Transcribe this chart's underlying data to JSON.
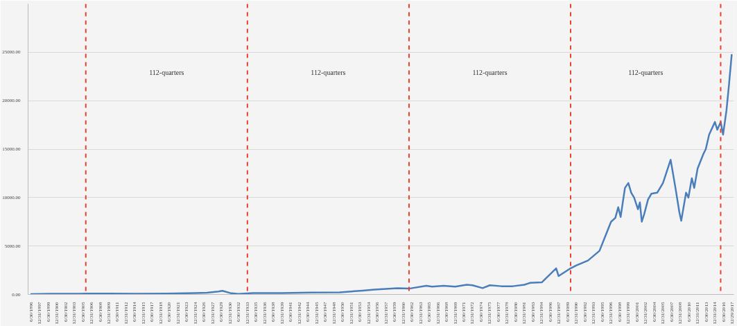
{
  "chart_data": {
    "type": "line",
    "xlim": [
      "1896-01-01",
      "2018-04-15"
    ],
    "ylim": [
      0,
      30000
    ],
    "yticks": [
      {
        "value": 0,
        "label": "0.00"
      },
      {
        "value": 5000,
        "label": "5000.00"
      },
      {
        "value": 10000,
        "label": "10000.00"
      },
      {
        "value": 15000,
        "label": "15000.00"
      },
      {
        "value": 20000,
        "label": "20000.00"
      },
      {
        "value": 25000,
        "label": "25000.00"
      }
    ],
    "xticks": [
      {
        "value": "1896-06-30",
        "label": "6/30/1896"
      },
      {
        "value": "1897-12-31",
        "label": "12/31/1897"
      },
      {
        "value": "1899-06-30",
        "label": "6/30/1899"
      },
      {
        "value": "1900-12-31",
        "label": "12/31/1900"
      },
      {
        "value": "1902-06-30",
        "label": "6/30/1902"
      },
      {
        "value": "1903-12-31",
        "label": "12/31/1903"
      },
      {
        "value": "1905-06-30",
        "label": "6/30/1905"
      },
      {
        "value": "1906-12-31",
        "label": "12/31/1906"
      },
      {
        "value": "1908-06-30",
        "label": "6/30/1908"
      },
      {
        "value": "1909-12-31",
        "label": "12/31/1909"
      },
      {
        "value": "1911-06-30",
        "label": "6/30/1911"
      },
      {
        "value": "1912-12-31",
        "label": "12/31/1912"
      },
      {
        "value": "1914-06-30",
        "label": "6/30/1914"
      },
      {
        "value": "1915-12-31",
        "label": "12/31/1915"
      },
      {
        "value": "1917-06-30",
        "label": "6/30/1917"
      },
      {
        "value": "1918-12-31",
        "label": "12/31/1918"
      },
      {
        "value": "1920-06-30",
        "label": "6/30/1920"
      },
      {
        "value": "1921-12-31",
        "label": "12/31/1921"
      },
      {
        "value": "1923-06-30",
        "label": "6/30/1923"
      },
      {
        "value": "1924-12-31",
        "label": "12/31/1924"
      },
      {
        "value": "1926-06-30",
        "label": "6/30/1926"
      },
      {
        "value": "1927-12-31",
        "label": "12/31/1927"
      },
      {
        "value": "1929-06-30",
        "label": "6/30/1929"
      },
      {
        "value": "1930-12-31",
        "label": "12/31/1930"
      },
      {
        "value": "1932-06-30",
        "label": "6/30/1932"
      },
      {
        "value": "1933-12-31",
        "label": "12/31/1933"
      },
      {
        "value": "1935-06-30",
        "label": "6/30/1935"
      },
      {
        "value": "1936-12-31",
        "label": "12/31/1936"
      },
      {
        "value": "1938-06-30",
        "label": "6/30/1938"
      },
      {
        "value": "1939-12-31",
        "label": "12/31/1939"
      },
      {
        "value": "1941-06-30",
        "label": "6/30/1941"
      },
      {
        "value": "1942-12-31",
        "label": "12/31/1942"
      },
      {
        "value": "1944-06-30",
        "label": "6/30/1944"
      },
      {
        "value": "1945-12-31",
        "label": "12/31/1945"
      },
      {
        "value": "1947-06-30",
        "label": "6/30/1947"
      },
      {
        "value": "1948-12-31",
        "label": "12/31/1948"
      },
      {
        "value": "1950-06-30",
        "label": "6/30/1950"
      },
      {
        "value": "1951-12-31",
        "label": "12/31/1951"
      },
      {
        "value": "1953-06-30",
        "label": "6/30/1953"
      },
      {
        "value": "1954-12-31",
        "label": "12/31/1954"
      },
      {
        "value": "1956-06-30",
        "label": "6/30/1956"
      },
      {
        "value": "1957-12-31",
        "label": "12/31/1957"
      },
      {
        "value": "1959-06-30",
        "label": "6/30/1959"
      },
      {
        "value": "1960-12-31",
        "label": "12/31/1960"
      },
      {
        "value": "1962-06-30",
        "label": "6/30/1962"
      },
      {
        "value": "1963-12-31",
        "label": "12/31/1963"
      },
      {
        "value": "1965-06-30",
        "label": "6/30/1965"
      },
      {
        "value": "1966-12-31",
        "label": "12/31/1966"
      },
      {
        "value": "1968-06-30",
        "label": "6/30/1968"
      },
      {
        "value": "1969-12-31",
        "label": "12/31/1969"
      },
      {
        "value": "1971-06-30",
        "label": "6/30/1971"
      },
      {
        "value": "1972-12-31",
        "label": "12/31/1972"
      },
      {
        "value": "1974-06-30",
        "label": "6/30/1974"
      },
      {
        "value": "1975-12-31",
        "label": "12/31/1975"
      },
      {
        "value": "1977-06-30",
        "label": "6/30/1977"
      },
      {
        "value": "1978-12-31",
        "label": "12/31/1978"
      },
      {
        "value": "1980-06-30",
        "label": "6/30/1980"
      },
      {
        "value": "1981-12-31",
        "label": "12/31/1981"
      },
      {
        "value": "1983-06-30",
        "label": "6/30/1983"
      },
      {
        "value": "1984-12-31",
        "label": "12/31/1984"
      },
      {
        "value": "1986-06-30",
        "label": "6/30/1986"
      },
      {
        "value": "1987-12-31",
        "label": "12/31/1987"
      },
      {
        "value": "1989-06-30",
        "label": "6/30/1989"
      },
      {
        "value": "1990-12-31",
        "label": "12/31/1990"
      },
      {
        "value": "1992-06-30",
        "label": "6/30/1992"
      },
      {
        "value": "1993-12-31",
        "label": "12/31/1993"
      },
      {
        "value": "1995-06-30",
        "label": "6/30/1995"
      },
      {
        "value": "1996-12-31",
        "label": "12/31/1996"
      },
      {
        "value": "1998-06-30",
        "label": "6/30/1998"
      },
      {
        "value": "1999-12-31",
        "label": "12/31/1999"
      },
      {
        "value": "2001-06-30",
        "label": "6/30/2001"
      },
      {
        "value": "2002-12-31",
        "label": "12/31/2002"
      },
      {
        "value": "2004-06-30",
        "label": "6/30/2004"
      },
      {
        "value": "2005-12-31",
        "label": "12/31/2005"
      },
      {
        "value": "2007-06-30",
        "label": "6/30/2007"
      },
      {
        "value": "2008-12-31",
        "label": "12/31/2008"
      },
      {
        "value": "2010-06-30",
        "label": "6/30/2010"
      },
      {
        "value": "2011-12-31",
        "label": "12/31/2011"
      },
      {
        "value": "2013-06-30",
        "label": "6/30/2013"
      },
      {
        "value": "2014-12-31",
        "label": "12/31/2014"
      },
      {
        "value": "2016-06-30",
        "label": "6/30/2016"
      },
      {
        "value": "2017-12-29",
        "label": "12/29/2017"
      }
    ],
    "grid": "y",
    "marker": "none",
    "line_style": "solid",
    "x": [
      "1896-06",
      "1900-01",
      "1905-01",
      "1906-01",
      "1910-01",
      "1915-01",
      "1920-01",
      "1925-01",
      "1927-01",
      "1929-01",
      "1929-09",
      "1931-01",
      "1932-06",
      "1935-01",
      "1940-01",
      "1945-01",
      "1950-01",
      "1954-01",
      "1956-01",
      "1960-01",
      "1962-01",
      "1965-01",
      "1966-01",
      "1968-01",
      "1970-01",
      "1972-01",
      "1973-01",
      "1974-10",
      "1976-01",
      "1978-01",
      "1980-01",
      "1982-01",
      "1983-01",
      "1985-01",
      "1987-07",
      "1987-12",
      "1990-01",
      "1991-01",
      "1993-01",
      "1995-01",
      "1996-01",
      "1997-01",
      "1997-10",
      "1998-04",
      "1998-09",
      "1999-06",
      "2000-01",
      "2000-07",
      "2001-01",
      "2001-09",
      "2002-01",
      "2002-05",
      "2002-10",
      "2003-06",
      "2004-01",
      "2005-01",
      "2006-01",
      "2007-05",
      "2008-03",
      "2008-11",
      "2009-03",
      "2010-01",
      "2010-06",
      "2011-01",
      "2011-06",
      "2012-01",
      "2013-01",
      "2013-06",
      "2014-01",
      "2015-01",
      "2015-06",
      "2016-01",
      "2016-06",
      "2017-01",
      "2017-06",
      "2017-12"
    ],
    "series": [
      {
        "color": "#4a7ebb",
        "values": [
          40,
          70,
          80,
          90,
          90,
          80,
          90,
          150,
          180,
          300,
          380,
          150,
          50,
          150,
          140,
          190,
          220,
          400,
          500,
          650,
          600,
          900,
          800,
          900,
          800,
          1000,
          950,
          650,
          950,
          850,
          850,
          1000,
          1200,
          1250,
          2700,
          1900,
          2700,
          3000,
          3500,
          4500,
          6000,
          7500,
          7900,
          9000,
          8000,
          11000,
          11500,
          10500,
          10000,
          8800,
          9500,
          7500,
          8300,
          9800,
          10400,
          10500,
          11500,
          13900,
          11000,
          8500,
          7600,
          10500,
          10000,
          12000,
          11000,
          13000,
          14500,
          15000,
          16500,
          17800,
          17000,
          17800,
          16500,
          19000,
          21500,
          24800
        ]
      }
    ],
    "ref_lines": [
      {
        "axis": "x",
        "value": "1906-01-01",
        "color": "#e8402a",
        "line_style": "dashed"
      },
      {
        "axis": "x",
        "value": "1934-01-01",
        "color": "#e8402a",
        "line_style": "dashed"
      },
      {
        "axis": "x",
        "value": "1962-01-01",
        "color": "#e8402a",
        "line_style": "dashed"
      },
      {
        "axis": "x",
        "value": "1990-01-01",
        "color": "#e8402a",
        "line_style": "dashed"
      },
      {
        "axis": "x",
        "value": "2016-01-01",
        "color": "#e8402a",
        "line_style": "dashed"
      }
    ],
    "annotations": [
      "112-quarters",
      "112-quarters",
      "112-quarters",
      "112-quarters"
    ]
  }
}
